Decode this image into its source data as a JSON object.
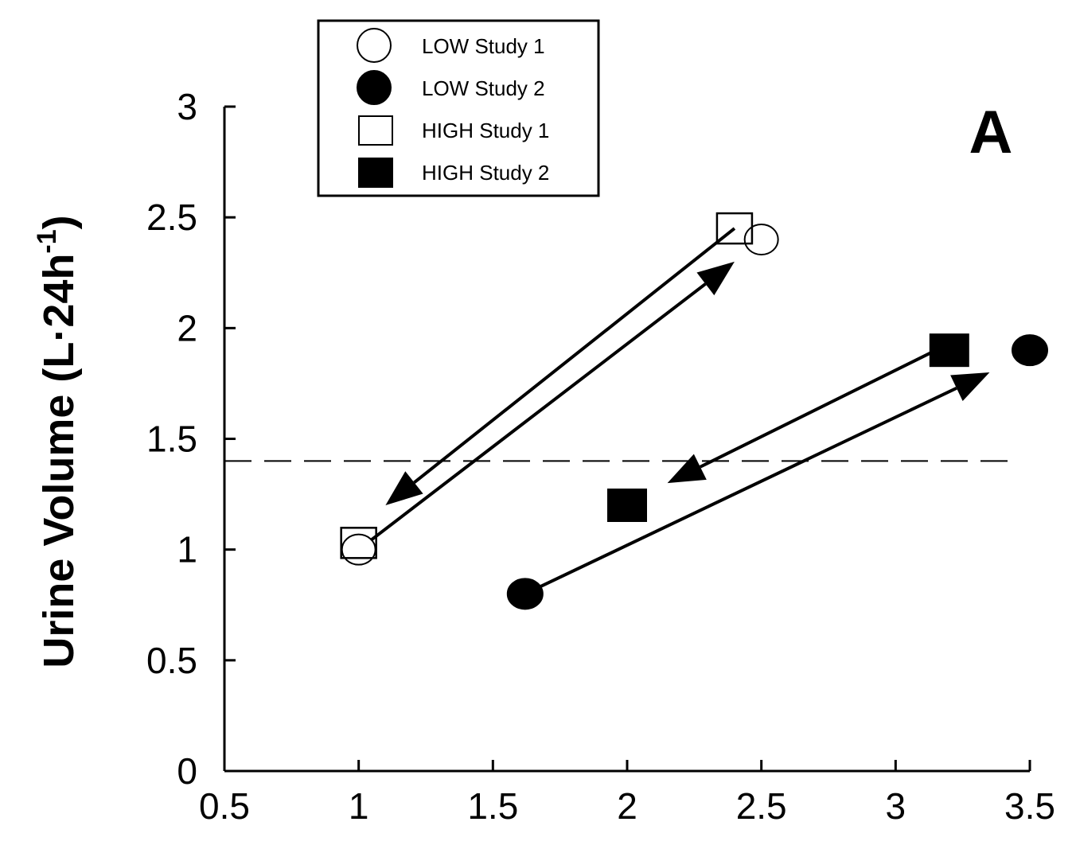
{
  "chart_data": {
    "type": "scatter",
    "title": "",
    "panel_label": "A",
    "xlabel": "",
    "ylabel": "Urine Volume (L·24h",
    "ylabel_superscript": "-1",
    "ylabel_close": ")",
    "xlim": [
      0.5,
      3.5
    ],
    "ylim": [
      0,
      3
    ],
    "xticks": [
      "0.5",
      "1",
      "1.5",
      "2",
      "2.5",
      "3",
      "3.5"
    ],
    "yticks": [
      "0",
      "0.5",
      "1",
      "1.5",
      "2",
      "2.5",
      "3"
    ],
    "reference_line": {
      "y": 1.4,
      "style": "dashed"
    },
    "legend": {
      "position": "top-left",
      "entries": [
        "LOW Study 1",
        "LOW Study 2",
        "HIGH Study 1",
        "HIGH Study 2"
      ]
    },
    "series": [
      {
        "name": "LOW Study 1",
        "marker": "open-circle",
        "points": [
          [
            1.0,
            1.0
          ],
          [
            2.5,
            2.4
          ]
        ]
      },
      {
        "name": "LOW Study 2",
        "marker": "filled-circle",
        "points": [
          [
            1.62,
            0.8
          ],
          [
            3.5,
            1.9
          ]
        ]
      },
      {
        "name": "HIGH Study 1",
        "marker": "open-square",
        "points": [
          [
            1.0,
            1.03
          ],
          [
            2.4,
            2.45
          ]
        ]
      },
      {
        "name": "HIGH Study 2",
        "marker": "filled-square",
        "points": [
          [
            2.0,
            1.2
          ],
          [
            3.2,
            1.9
          ]
        ]
      }
    ],
    "arrows": [
      {
        "from": [
          1.0,
          1.0
        ],
        "to": [
          2.4,
          2.3
        ]
      },
      {
        "from": [
          2.4,
          2.45
        ],
        "to": [
          1.1,
          1.2
        ]
      },
      {
        "from": [
          1.62,
          0.8
        ],
        "to": [
          3.35,
          1.8
        ]
      },
      {
        "from": [
          3.15,
          1.9
        ],
        "to": [
          2.15,
          1.3
        ]
      }
    ]
  }
}
